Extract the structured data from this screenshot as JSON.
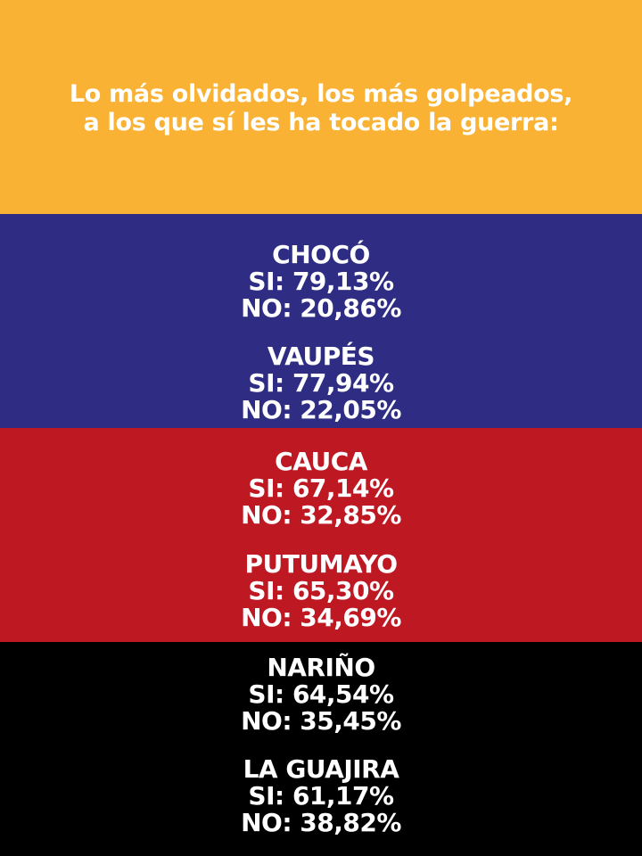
{
  "colors": {
    "yellow": "#F9B233",
    "blue": "#2E2D83",
    "red": "#BE1823",
    "black": "#000000",
    "text": "#FFFFFF"
  },
  "headline": {
    "line1": "Lo más olvidados, los más golpeados,",
    "line2": "a los que sí les ha tocado la guerra:"
  },
  "regions": [
    {
      "name": "CHOCÓ",
      "si": "SI: 79,13%",
      "no": "NO: 20,86%"
    },
    {
      "name": "VAUPÉS",
      "si": "SI: 77,94%",
      "no": "NO: 22,05%"
    },
    {
      "name": "CAUCA",
      "si": "SI: 67,14%",
      "no": "NO: 32,85%"
    },
    {
      "name": "PUTUMAYO",
      "si": "SI: 65,30%",
      "no": "NO: 34,69%"
    },
    {
      "name": "NARIÑO",
      "si": "SI: 64,54%",
      "no": "NO: 35,45%"
    },
    {
      "name": "LA GUAJIRA",
      "si": "SI: 61,17%",
      "no": "NO: 38,82%"
    }
  ]
}
